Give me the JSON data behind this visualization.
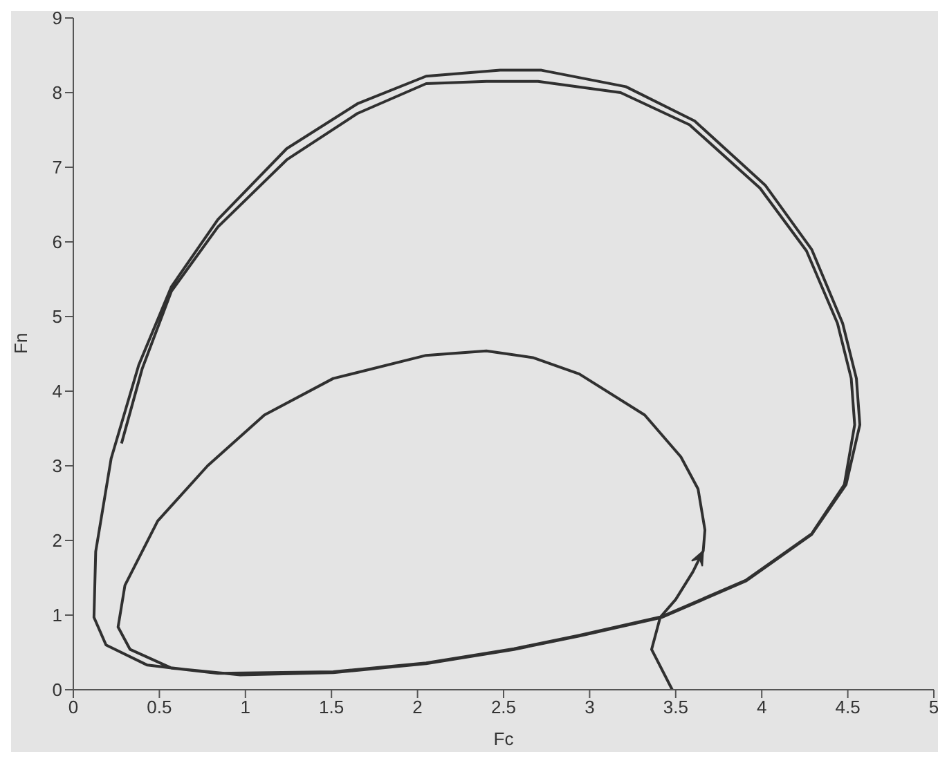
{
  "chart_data": {
    "type": "line",
    "xlabel": "Fc",
    "ylabel": "Fn",
    "xlim": [
      0,
      5
    ],
    "ylim": [
      0,
      9
    ],
    "xticks": [
      0,
      0.5,
      1,
      1.5,
      2,
      2.5,
      3,
      3.5,
      4,
      4.5,
      5
    ],
    "yticks": [
      0,
      1,
      2,
      3,
      4,
      5,
      6,
      7,
      8,
      9
    ],
    "marker": "none",
    "line_style": "solid",
    "series": [
      {
        "color": "#303030",
        "x": [
          3.48,
          3.36,
          3.41,
          3.5,
          3.6,
          3.66,
          3.67,
          3.63,
          3.53,
          3.32,
          2.94,
          2.67,
          2.4,
          2.05,
          1.51,
          1.11,
          0.78,
          0.49,
          0.3,
          0.26,
          0.33,
          0.57,
          0.97,
          1.51,
          2.05,
          2.56,
          2.94,
          3.42,
          3.91,
          4.29,
          4.49,
          4.57,
          4.55,
          4.47,
          4.29,
          4.02,
          3.61,
          3.21,
          2.72,
          2.48,
          2.05,
          1.65,
          1.24,
          0.84,
          0.57,
          0.38,
          0.22,
          0.13,
          0.12,
          0.19,
          0.43,
          0.84,
          1.51,
          2.05,
          2.56,
          2.94,
          3.42,
          3.91,
          4.29,
          4.48,
          4.54,
          4.52,
          4.44,
          4.26,
          3.99,
          3.58,
          3.18,
          2.7,
          2.4,
          2.05,
          1.65,
          1.24,
          0.84,
          0.57,
          0.4,
          0.28
        ],
        "values": [
          0,
          0.54,
          0.97,
          1.21,
          1.58,
          1.86,
          2.14,
          2.69,
          3.12,
          3.68,
          4.23,
          4.45,
          4.54,
          4.48,
          4.17,
          3.68,
          3,
          2.26,
          1.4,
          0.84,
          0.54,
          0.29,
          0.2,
          0.23,
          0.35,
          0.54,
          0.72,
          0.97,
          1.46,
          2.08,
          2.75,
          3.55,
          4.17,
          4.91,
          5.9,
          6.76,
          7.62,
          8.08,
          8.3,
          8.3,
          8.22,
          7.85,
          7.25,
          6.3,
          5.4,
          4.35,
          3.1,
          1.85,
          0.97,
          0.6,
          0.33,
          0.22,
          0.24,
          0.36,
          0.55,
          0.73,
          0.98,
          1.47,
          2.09,
          2.75,
          3.55,
          4.17,
          4.91,
          5.88,
          6.72,
          7.57,
          8,
          8.15,
          8.15,
          8.12,
          7.72,
          7.1,
          6.2,
          5.34,
          4.3,
          3.3
        ]
      }
    ]
  }
}
